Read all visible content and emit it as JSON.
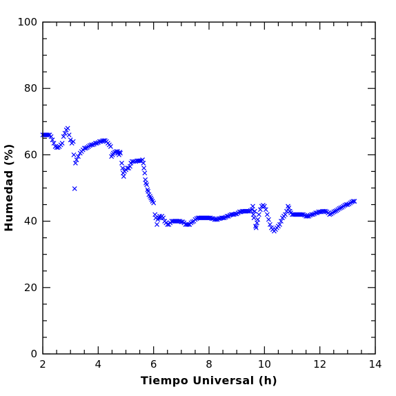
{
  "chart_data": {
    "type": "scatter",
    "xlabel": "Tiempo Universal (h)",
    "ylabel": "Humedad (%)",
    "xlim": [
      2,
      14
    ],
    "ylim": [
      0,
      100
    ],
    "xticks": [
      2,
      4,
      6,
      8,
      10,
      12,
      14
    ],
    "yticks": [
      0,
      20,
      40,
      60,
      80,
      100
    ],
    "x_minor_step": 0.5,
    "y_minor_step": 5,
    "grid": false,
    "legend": "none",
    "marker": "x",
    "series": [
      {
        "color": "#0000ff",
        "points": [
          [
            2.0,
            66.0
          ],
          [
            2.05,
            66.0
          ],
          [
            2.1,
            66.0
          ],
          [
            2.15,
            66.0
          ],
          [
            2.2,
            66.0
          ],
          [
            2.25,
            66.0
          ],
          [
            2.3,
            65.5
          ],
          [
            2.35,
            64.5
          ],
          [
            2.4,
            63.5
          ],
          [
            2.45,
            62.5
          ],
          [
            2.5,
            62.2
          ],
          [
            2.55,
            62.2
          ],
          [
            2.6,
            62.5
          ],
          [
            2.65,
            63.0
          ],
          [
            2.7,
            63.5
          ],
          [
            2.75,
            65.5
          ],
          [
            2.8,
            66.5
          ],
          [
            2.85,
            67.5
          ],
          [
            2.9,
            68.0
          ],
          [
            2.95,
            66.0
          ],
          [
            3.0,
            64.5
          ],
          [
            3.05,
            63.5
          ],
          [
            3.1,
            64.0
          ],
          [
            3.12,
            60.0
          ],
          [
            3.15,
            49.8
          ],
          [
            3.18,
            57.5
          ],
          [
            3.22,
            58.5
          ],
          [
            3.28,
            59.5
          ],
          [
            3.35,
            60.5
          ],
          [
            3.4,
            61.0
          ],
          [
            3.45,
            61.5
          ],
          [
            3.5,
            62.0
          ],
          [
            3.55,
            62.0
          ],
          [
            3.6,
            62.2
          ],
          [
            3.65,
            62.5
          ],
          [
            3.7,
            62.8
          ],
          [
            3.75,
            63.0
          ],
          [
            3.8,
            63.0
          ],
          [
            3.85,
            63.2
          ],
          [
            3.9,
            63.5
          ],
          [
            3.95,
            63.5
          ],
          [
            4.0,
            63.7
          ],
          [
            4.05,
            64.0
          ],
          [
            4.1,
            64.0
          ],
          [
            4.15,
            64.2
          ],
          [
            4.2,
            64.3
          ],
          [
            4.25,
            64.3
          ],
          [
            4.3,
            64.0
          ],
          [
            4.35,
            63.5
          ],
          [
            4.4,
            63.0
          ],
          [
            4.45,
            62.5
          ],
          [
            4.48,
            59.5
          ],
          [
            4.52,
            60.0
          ],
          [
            4.55,
            60.5
          ],
          [
            4.6,
            60.8
          ],
          [
            4.65,
            61.0
          ],
          [
            4.7,
            61.0
          ],
          [
            4.72,
            60.5
          ],
          [
            4.75,
            60.0
          ],
          [
            4.78,
            60.8
          ],
          [
            4.8,
            60.5
          ],
          [
            4.85,
            57.5
          ],
          [
            4.88,
            56.0
          ],
          [
            4.9,
            54.5
          ],
          [
            4.92,
            53.5
          ],
          [
            4.95,
            55.0
          ],
          [
            5.0,
            55.5
          ],
          [
            5.05,
            56.0
          ],
          [
            5.1,
            56.0
          ],
          [
            5.15,
            56.5
          ],
          [
            5.18,
            57.5
          ],
          [
            5.22,
            58.0
          ],
          [
            5.28,
            58.0
          ],
          [
            5.35,
            58.0
          ],
          [
            5.4,
            58.2
          ],
          [
            5.45,
            58.2
          ],
          [
            5.5,
            58.2
          ],
          [
            5.55,
            58.2
          ],
          [
            5.6,
            58.5
          ],
          [
            5.63,
            57.5
          ],
          [
            5.65,
            56.0
          ],
          [
            5.68,
            54.5
          ],
          [
            5.7,
            52.5
          ],
          [
            5.72,
            51.5
          ],
          [
            5.75,
            51.0
          ],
          [
            5.78,
            49.5
          ],
          [
            5.8,
            49.0
          ],
          [
            5.83,
            48.0
          ],
          [
            5.87,
            47.5
          ],
          [
            5.9,
            47.0
          ],
          [
            5.93,
            46.5
          ],
          [
            5.96,
            46.0
          ],
          [
            6.0,
            45.5
          ],
          [
            6.05,
            42.0
          ],
          [
            6.08,
            41.0
          ],
          [
            6.12,
            39.0
          ],
          [
            6.15,
            40.5
          ],
          [
            6.18,
            41.0
          ],
          [
            6.22,
            41.5
          ],
          [
            6.25,
            41.0
          ],
          [
            6.3,
            41.5
          ],
          [
            6.35,
            41.0
          ],
          [
            6.4,
            40.0
          ],
          [
            6.45,
            39.5
          ],
          [
            6.5,
            39.0
          ],
          [
            6.55,
            39.0
          ],
          [
            6.6,
            39.5
          ],
          [
            6.65,
            40.0
          ],
          [
            6.7,
            40.0
          ],
          [
            6.75,
            40.0
          ],
          [
            6.8,
            40.0
          ],
          [
            6.85,
            40.0
          ],
          [
            6.9,
            40.0
          ],
          [
            6.95,
            40.0
          ],
          [
            7.0,
            39.8
          ],
          [
            7.05,
            39.8
          ],
          [
            7.1,
            39.5
          ],
          [
            7.15,
            39.0
          ],
          [
            7.2,
            39.0
          ],
          [
            7.25,
            39.0
          ],
          [
            7.3,
            39.0
          ],
          [
            7.35,
            39.5
          ],
          [
            7.4,
            39.8
          ],
          [
            7.45,
            40.0
          ],
          [
            7.5,
            40.5
          ],
          [
            7.55,
            40.8
          ],
          [
            7.6,
            41.0
          ],
          [
            7.65,
            41.0
          ],
          [
            7.7,
            41.0
          ],
          [
            7.75,
            41.0
          ],
          [
            7.8,
            41.0
          ],
          [
            7.85,
            41.0
          ],
          [
            7.9,
            41.0
          ],
          [
            7.95,
            41.0
          ],
          [
            8.0,
            41.0
          ],
          [
            8.05,
            41.0
          ],
          [
            8.1,
            40.8
          ],
          [
            8.15,
            40.8
          ],
          [
            8.2,
            40.5
          ],
          [
            8.25,
            40.5
          ],
          [
            8.3,
            40.5
          ],
          [
            8.35,
            40.8
          ],
          [
            8.4,
            40.8
          ],
          [
            8.45,
            41.0
          ],
          [
            8.5,
            41.0
          ],
          [
            8.55,
            41.0
          ],
          [
            8.6,
            41.2
          ],
          [
            8.65,
            41.5
          ],
          [
            8.7,
            41.5
          ],
          [
            8.75,
            41.8
          ],
          [
            8.8,
            42.0
          ],
          [
            8.85,
            42.0
          ],
          [
            8.9,
            42.0
          ],
          [
            8.95,
            42.2
          ],
          [
            9.0,
            42.2
          ],
          [
            9.05,
            42.5
          ],
          [
            9.1,
            42.8
          ],
          [
            9.15,
            42.8
          ],
          [
            9.2,
            43.0
          ],
          [
            9.25,
            43.0
          ],
          [
            9.3,
            43.0
          ],
          [
            9.35,
            43.0
          ],
          [
            9.4,
            43.0
          ],
          [
            9.45,
            43.0
          ],
          [
            9.5,
            43.2
          ],
          [
            9.55,
            43.5
          ],
          [
            9.58,
            44.5
          ],
          [
            9.6,
            42.0
          ],
          [
            9.62,
            41.0
          ],
          [
            9.65,
            43.0
          ],
          [
            9.68,
            38.5
          ],
          [
            9.7,
            38.0
          ],
          [
            9.73,
            39.5
          ],
          [
            9.76,
            40.5
          ],
          [
            9.8,
            42.0
          ],
          [
            9.85,
            43.5
          ],
          [
            9.9,
            44.5
          ],
          [
            9.95,
            44.8
          ],
          [
            10.0,
            44.5
          ],
          [
            10.05,
            43.5
          ],
          [
            10.1,
            42.0
          ],
          [
            10.15,
            40.5
          ],
          [
            10.2,
            39.0
          ],
          [
            10.25,
            38.0
          ],
          [
            10.3,
            37.5
          ],
          [
            10.35,
            37.0
          ],
          [
            10.4,
            37.5
          ],
          [
            10.45,
            38.0
          ],
          [
            10.5,
            38.5
          ],
          [
            10.55,
            39.0
          ],
          [
            10.6,
            40.0
          ],
          [
            10.65,
            41.0
          ],
          [
            10.7,
            41.5
          ],
          [
            10.75,
            42.0
          ],
          [
            10.8,
            43.0
          ],
          [
            10.85,
            44.5
          ],
          [
            10.88,
            44.0
          ],
          [
            10.92,
            43.0
          ],
          [
            10.95,
            42.5
          ],
          [
            11.0,
            42.0
          ],
          [
            11.05,
            42.0
          ],
          [
            11.1,
            42.0
          ],
          [
            11.15,
            42.0
          ],
          [
            11.2,
            42.0
          ],
          [
            11.25,
            42.0
          ],
          [
            11.3,
            42.0
          ],
          [
            11.35,
            42.0
          ],
          [
            11.4,
            42.0
          ],
          [
            11.45,
            41.8
          ],
          [
            11.5,
            41.5
          ],
          [
            11.55,
            41.5
          ],
          [
            11.6,
            41.5
          ],
          [
            11.65,
            41.8
          ],
          [
            11.7,
            42.0
          ],
          [
            11.75,
            42.0
          ],
          [
            11.8,
            42.2
          ],
          [
            11.85,
            42.5
          ],
          [
            11.9,
            42.5
          ],
          [
            11.95,
            42.8
          ],
          [
            12.0,
            42.8
          ],
          [
            12.05,
            42.8
          ],
          [
            12.1,
            43.0
          ],
          [
            12.15,
            43.0
          ],
          [
            12.2,
            43.0
          ],
          [
            12.25,
            42.8
          ],
          [
            12.3,
            42.5
          ],
          [
            12.35,
            42.0
          ],
          [
            12.4,
            42.2
          ],
          [
            12.45,
            42.5
          ],
          [
            12.5,
            42.8
          ],
          [
            12.55,
            43.0
          ],
          [
            12.6,
            43.2
          ],
          [
            12.65,
            43.5
          ],
          [
            12.7,
            43.8
          ],
          [
            12.75,
            44.0
          ],
          [
            12.8,
            44.2
          ],
          [
            12.85,
            44.5
          ],
          [
            12.9,
            44.8
          ],
          [
            12.95,
            45.0
          ],
          [
            13.0,
            45.0
          ],
          [
            13.05,
            45.2
          ],
          [
            13.1,
            45.5
          ],
          [
            13.15,
            45.8
          ],
          [
            13.2,
            46.0
          ],
          [
            13.25,
            46.0
          ]
        ]
      }
    ]
  }
}
